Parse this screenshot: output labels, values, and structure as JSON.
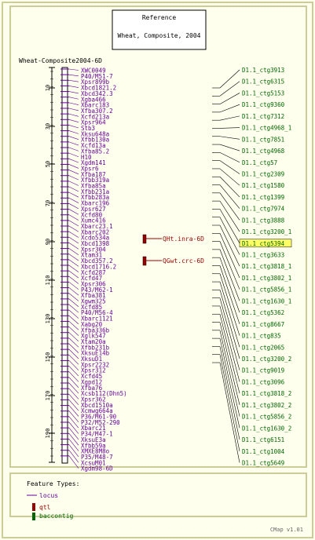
{
  "reference": {
    "title": "Reference",
    "subtitle": "Wheat, Composite, 2004"
  },
  "map_name": "Wheat-Composite2004-6D",
  "scale_ticks": [
    {
      "value": 10,
      "y": 112
    },
    {
      "value": 30,
      "y": 161
    },
    {
      "value": 50,
      "y": 209
    },
    {
      "value": 70,
      "y": 259
    },
    {
      "value": 90,
      "y": 308
    },
    {
      "value": 110,
      "y": 357
    },
    {
      "value": 130,
      "y": 406
    },
    {
      "value": 150,
      "y": 455
    },
    {
      "value": 170,
      "y": 504
    },
    {
      "value": 190,
      "y": 552
    }
  ],
  "loci": [
    "XWC0049",
    "P40/M51-7",
    "Xpsr899b",
    "Xbcd1821.2",
    "Xbcd342.3",
    "Xgba466",
    "Xbarc183",
    "Xfba307.2",
    "Xcfd213a",
    "Xpsr964",
    "Stb3",
    "Xksu648a",
    "Xfbb130a",
    "Xcfd13a",
    "Xfba85.2",
    "H10",
    "Xgdm141",
    "Xpsr6",
    "Xfba187",
    "Xfbb319a",
    "Xfba85a",
    "Xfbb231a",
    "Xfbb283a",
    "Xbarc196",
    "Xpsr627",
    "Xcfd80",
    "Xumc416",
    "Xbarc23.1",
    "Xbarc202",
    "Xcdo534a",
    "Xbcd1398",
    "Xpsr304",
    "Xtam31",
    "Xbcd357.2",
    "Xbcd1716.2",
    "Xcfd287",
    "Xcfd47",
    "Xpsr306",
    "P43/M62-1",
    "Xfba381",
    "Xgwm325",
    "Xcfd85",
    "P40/M56-4",
    "Xbarc1121",
    "Xabg20",
    "Xfba336b",
    "Xglk547",
    "Xtam20a",
    "Xfbb231b",
    "XksuE14b",
    "XksuD1",
    "Xpsr2232",
    "Xpsr312",
    "Xcfd45",
    "Xgpd12",
    "Xfba76",
    "Xcsb112(Dhn5)",
    "Xpsr362",
    "Xbcd1510a",
    "Xcmwg664a",
    "P36/M61-90",
    "P32/M52-290",
    "Xbarc21",
    "P34/M47-1",
    "XksuE3a",
    "Xfbb59a",
    "XMXE8M8o",
    "P35/M48-7",
    "XcsuM01",
    "Xgdm98-6D"
  ],
  "qtls": [
    "QHt.inra-6D",
    "QGwt.crc-6D"
  ],
  "contigs": [
    "D1.1_ctg3913",
    "D1.1_ctg6315",
    "D1.1_ctg5153",
    "D1.1_ctg9360",
    "D1.1_ctg7312",
    "D1.1_ctg4968_1",
    "D1.1_ctg7851",
    "D1.1_ctg4968",
    "D1.1_ctg57",
    "D1.1_ctg2309",
    "D1.1_ctg1580",
    "D1.1_ctg1399",
    "D1.1_ctg7974",
    "D1.1_ctg3888",
    "D1.1_ctg3200_1",
    "D1.1_ctg5394",
    "D1.1_ctg3633",
    "D1.1_ctg3818_1",
    "D1.1_ctg3802_1",
    "D1.1_ctg5856_1",
    "D1.1_ctg1630_1",
    "D1.1_ctg5362",
    "D1.1_ctg8667",
    "D1.1_ctg835",
    "D1.1_ctg2065",
    "D1.1_ctg3200_2",
    "D1.1_ctg9019",
    "D1.1_ctg3096",
    "D1.1_ctg3818_2",
    "D1.1_ctg3802_2",
    "D1.1_ctg5856_2",
    "D1.1_ctg1630_2",
    "D1.1_ctg6151",
    "D1.1_ctg1004",
    "D1.1_ctg5649"
  ],
  "highlighted_contig": "D1.1_ctg5394",
  "legend": {
    "title": "Feature Types:",
    "items": [
      {
        "label": "locus",
        "type": "line",
        "color": "#660099"
      },
      {
        "label": "qtl",
        "type": "box",
        "color": "#990000"
      },
      {
        "label": "baccontig",
        "type": "box",
        "color": "#006600"
      }
    ]
  },
  "version": "CMap v1.01",
  "colors": {
    "locus": "#660099",
    "contig": "#006600",
    "qtl": "#990000",
    "highlight": "#ffff66",
    "border": "#cccc99"
  }
}
